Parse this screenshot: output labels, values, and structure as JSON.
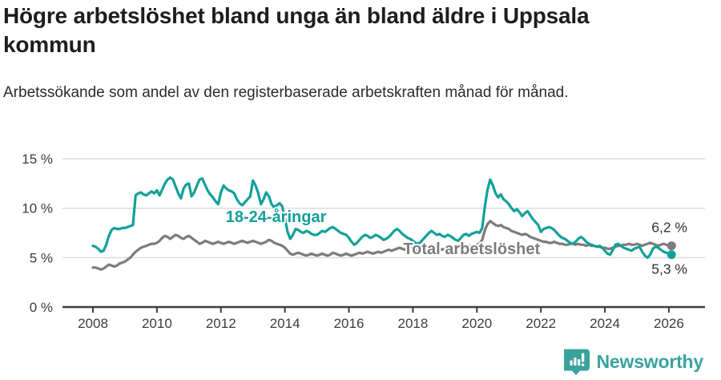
{
  "header": {
    "title": "Högre arbetslöshet bland unga än bland äldre i Uppsala kommun",
    "subtitle": "Arbetssökande som andel av den registerbaserade arbetskraften månad för månad."
  },
  "footer": {
    "brand": "Newsworthy",
    "logo_icon": "newsworthy-speech-bubble-bar-chart-icon"
  },
  "colors": {
    "young_line": "#12a09a",
    "total_line": "#7c7c7c",
    "grid": "#dcdcdc",
    "axis": "#3e3e3e",
    "tick_text": "#3c3c3c",
    "title_text": "#1d1d1d",
    "end_label_text": "#333333",
    "brand_teal": "#3aa29c"
  },
  "chart_data": {
    "type": "line",
    "title": "",
    "xlabel": "",
    "ylabel": "",
    "x_start_year": 2008,
    "x_step_months": 1,
    "x_end": "2026-02",
    "x_ticks": [
      2008,
      2010,
      2012,
      2014,
      2016,
      2018,
      2020,
      2022,
      2024,
      2026
    ],
    "x_tick_labels": [
      "2008",
      "2010",
      "2012",
      "2014",
      "2016",
      "2018",
      "2020",
      "2022",
      "2024",
      "2026"
    ],
    "y_ticks": [
      0,
      5,
      10,
      15
    ],
    "y_tick_labels": [
      "0 %",
      "5 %",
      "10 %",
      "15 %"
    ],
    "ylim": [
      0,
      15.5
    ],
    "grid": true,
    "legend_position": "inline-labels",
    "series": [
      {
        "name": "Total arbetslöshet",
        "color": "#7c7c7c",
        "end_label": "6,2 %",
        "end_value": 6.2,
        "end_label_dx": -25,
        "end_label_dy": -17,
        "label_pos": {
          "year": 2017.7,
          "pct": 5.35
        },
        "values": [
          4.0,
          4.0,
          3.9,
          3.8,
          3.9,
          4.1,
          4.3,
          4.2,
          4.1,
          4.2,
          4.4,
          4.5,
          4.6,
          4.8,
          5.0,
          5.3,
          5.6,
          5.8,
          6.0,
          6.1,
          6.2,
          6.3,
          6.4,
          6.4,
          6.5,
          6.7,
          7.0,
          7.2,
          7.1,
          6.9,
          7.1,
          7.3,
          7.2,
          7.0,
          6.9,
          7.1,
          7.2,
          7.0,
          6.8,
          6.6,
          6.4,
          6.5,
          6.7,
          6.6,
          6.5,
          6.4,
          6.5,
          6.6,
          6.5,
          6.4,
          6.5,
          6.6,
          6.5,
          6.4,
          6.5,
          6.6,
          6.7,
          6.6,
          6.5,
          6.6,
          6.7,
          6.6,
          6.5,
          6.4,
          6.5,
          6.6,
          6.8,
          6.7,
          6.5,
          6.4,
          6.3,
          6.2,
          6.0,
          5.7,
          5.4,
          5.3,
          5.4,
          5.5,
          5.4,
          5.3,
          5.2,
          5.3,
          5.4,
          5.3,
          5.2,
          5.3,
          5.4,
          5.3,
          5.2,
          5.3,
          5.5,
          5.4,
          5.3,
          5.2,
          5.3,
          5.4,
          5.3,
          5.2,
          5.3,
          5.4,
          5.5,
          5.4,
          5.5,
          5.6,
          5.5,
          5.4,
          5.5,
          5.6,
          5.5,
          5.6,
          5.7,
          5.8,
          5.7,
          5.8,
          5.9,
          6.0,
          5.9,
          5.8,
          5.9,
          6.0,
          5.9,
          5.8,
          5.7,
          5.8,
          5.9,
          5.8,
          5.9,
          6.0,
          5.9,
          5.8,
          5.9,
          5.8,
          5.9,
          6.0,
          5.9,
          5.8,
          5.9,
          6.0,
          6.1,
          6.0,
          6.1,
          6.2,
          6.1,
          6.2,
          6.3,
          6.4,
          6.8,
          7.8,
          8.4,
          8.7,
          8.5,
          8.3,
          8.2,
          8.3,
          8.1,
          8.0,
          7.9,
          7.7,
          7.6,
          7.5,
          7.4,
          7.3,
          7.4,
          7.3,
          7.1,
          7.0,
          6.9,
          6.8,
          6.7,
          6.6,
          6.6,
          6.5,
          6.5,
          6.6,
          6.5,
          6.4,
          6.4,
          6.3,
          6.3,
          6.4,
          6.4,
          6.3,
          6.4,
          6.3,
          6.3,
          6.2,
          6.3,
          6.2,
          6.2,
          6.1,
          6.1,
          6.0,
          6.0,
          5.9,
          5.9,
          6.0,
          6.1,
          6.2,
          6.2,
          6.3,
          6.3,
          6.4,
          6.3,
          6.3,
          6.4,
          6.3,
          6.2,
          6.3,
          6.4,
          6.5,
          6.4,
          6.3,
          6.2,
          6.3,
          6.4,
          6.3,
          6.2,
          6.2
        ]
      },
      {
        "name": "18-24-åringar",
        "color": "#12a09a",
        "end_label": "5,3 %",
        "end_value": 5.3,
        "end_label_dx": -25,
        "end_label_dy": 24,
        "label_pos": {
          "year": 2012.15,
          "pct": 8.6
        },
        "values": [
          6.2,
          6.1,
          5.9,
          5.6,
          5.7,
          6.3,
          7.2,
          7.8,
          8.0,
          7.9,
          7.9,
          8.0,
          8.0,
          8.1,
          8.2,
          8.3,
          11.3,
          11.5,
          11.6,
          11.4,
          11.3,
          11.5,
          11.7,
          11.5,
          11.8,
          11.3,
          11.9,
          12.5,
          12.9,
          13.1,
          12.9,
          12.2,
          11.5,
          11.0,
          12.0,
          12.4,
          12.5,
          11.2,
          11.6,
          12.3,
          12.9,
          13.0,
          12.4,
          11.8,
          11.4,
          11.1,
          10.7,
          10.4,
          11.6,
          12.3,
          12.0,
          11.8,
          11.7,
          11.5,
          10.9,
          10.5,
          10.3,
          10.6,
          10.9,
          11.2,
          12.8,
          12.3,
          11.5,
          10.4,
          10.9,
          11.6,
          11.2,
          10.4,
          10.1,
          10.3,
          10.5,
          10.2,
          9.0,
          7.6,
          6.9,
          7.3,
          7.9,
          7.8,
          7.6,
          7.5,
          7.7,
          7.6,
          7.4,
          7.3,
          7.3,
          7.5,
          7.7,
          7.6,
          7.8,
          8.0,
          8.1,
          7.9,
          7.7,
          7.5,
          7.4,
          7.3,
          7.0,
          6.6,
          6.3,
          6.5,
          6.8,
          7.1,
          7.3,
          7.2,
          7.0,
          7.1,
          7.3,
          7.2,
          7.0,
          6.8,
          6.9,
          7.1,
          7.4,
          7.7,
          7.9,
          7.7,
          7.4,
          7.2,
          7.0,
          6.9,
          6.7,
          6.5,
          6.4,
          6.6,
          6.9,
          7.2,
          7.5,
          7.7,
          7.5,
          7.3,
          7.4,
          7.2,
          7.1,
          7.3,
          7.2,
          7.0,
          6.8,
          6.7,
          7.0,
          7.3,
          7.4,
          7.2,
          7.4,
          7.5,
          7.6,
          7.5,
          8.0,
          10.2,
          11.9,
          12.9,
          12.3,
          11.5,
          11.1,
          11.4,
          10.9,
          10.7,
          10.4,
          10.0,
          9.7,
          9.9,
          9.6,
          9.2,
          9.5,
          9.7,
          9.3,
          8.9,
          8.6,
          8.3,
          7.6,
          7.9,
          8.0,
          8.1,
          8.0,
          7.8,
          7.5,
          7.2,
          7.0,
          6.9,
          6.7,
          6.5,
          6.4,
          6.6,
          6.9,
          7.1,
          6.9,
          6.6,
          6.4,
          6.3,
          6.2,
          6.1,
          6.2,
          6.0,
          5.7,
          5.4,
          5.3,
          5.8,
          6.3,
          6.4,
          6.2,
          6.0,
          5.9,
          5.8,
          5.7,
          5.9,
          6.0,
          6.1,
          5.6,
          5.2,
          5.0,
          5.3,
          5.9,
          6.1,
          6.0,
          5.8,
          5.6,
          5.5,
          5.4,
          5.3
        ]
      }
    ]
  }
}
